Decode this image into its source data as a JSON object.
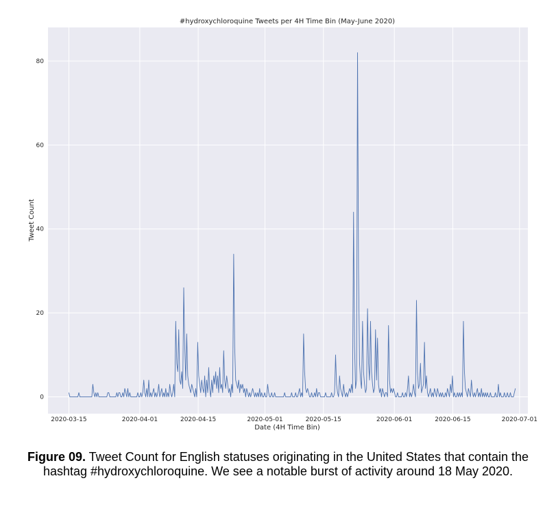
{
  "chart_data": {
    "type": "line",
    "title": "#hydroxychloroquine Tweets per 4H Time Bin (May-June 2020)",
    "xlabel": "Date (4H Time Bin)",
    "ylabel": "Tweet Count",
    "x_start": "2020-03-15",
    "x_end": "2020-06-30",
    "bin_hours": 4,
    "xlim": [
      "2020-03-10",
      "2020-07-03"
    ],
    "ylim": [
      -4,
      88
    ],
    "x_ticks": [
      "2020-03-15",
      "2020-04-01",
      "2020-04-15",
      "2020-05-01",
      "2020-05-15",
      "2020-06-01",
      "2020-06-15",
      "2020-07-01"
    ],
    "y_ticks": [
      0,
      20,
      40,
      60,
      80
    ],
    "grid": true,
    "series": [
      {
        "name": "Tweet Count",
        "color": "#4c72b0",
        "values": [
          1,
          0,
          0,
          0,
          0,
          0,
          0,
          0,
          0,
          0,
          1,
          0,
          0,
          0,
          0,
          0,
          0,
          0,
          0,
          0,
          0,
          0,
          0,
          0,
          3,
          1,
          0,
          1,
          0,
          1,
          0,
          0,
          0,
          0,
          0,
          0,
          0,
          0,
          0,
          1,
          1,
          0,
          0,
          0,
          0,
          0,
          0,
          0,
          1,
          0,
          1,
          1,
          0,
          0,
          1,
          0,
          2,
          1,
          0,
          2,
          0,
          1,
          0,
          0,
          0,
          0,
          0,
          0,
          0,
          1,
          0,
          0,
          1,
          0,
          1,
          4,
          1,
          0,
          2,
          0,
          4,
          0,
          1,
          0,
          1,
          2,
          0,
          1,
          0,
          1,
          3,
          0,
          1,
          2,
          0,
          1,
          0,
          2,
          0,
          1,
          0,
          3,
          1,
          0,
          1,
          3,
          0,
          18,
          8,
          6,
          16,
          4,
          3,
          6,
          2,
          26,
          12,
          4,
          15,
          5,
          3,
          2,
          1,
          3,
          2,
          1,
          0,
          2,
          0,
          13,
          5,
          3,
          1,
          4,
          2,
          1,
          5,
          0,
          4,
          1,
          7,
          2,
          0,
          4,
          1,
          5,
          3,
          6,
          2,
          5,
          1,
          7,
          2,
          3,
          1,
          11,
          4,
          2,
          5,
          3,
          1,
          2,
          0,
          3,
          1,
          34,
          12,
          4,
          3,
          2,
          4,
          1,
          3,
          2,
          3,
          1,
          2,
          0,
          2,
          1,
          0,
          1,
          0,
          1,
          2,
          1,
          0,
          1,
          0,
          1,
          0,
          2,
          0,
          1,
          0,
          0,
          1,
          0,
          0,
          3,
          1,
          0,
          0,
          1,
          0,
          0,
          1,
          0,
          0,
          0,
          0,
          0,
          0,
          0,
          0,
          0,
          1,
          0,
          0,
          0,
          0,
          0,
          0,
          1,
          0,
          0,
          0,
          1,
          0,
          0,
          1,
          2,
          0,
          1,
          0,
          15,
          6,
          2,
          1,
          2,
          1,
          0,
          0,
          1,
          0,
          0,
          1,
          0,
          2,
          0,
          1,
          1,
          0,
          0,
          0,
          0,
          0,
          1,
          0,
          0,
          0,
          0,
          0,
          1,
          0,
          0,
          1,
          10,
          3,
          1,
          0,
          5,
          2,
          1,
          0,
          3,
          1,
          0,
          1,
          0,
          1,
          2,
          1,
          3,
          1,
          44,
          12,
          2,
          4,
          82,
          30,
          8,
          4,
          2,
          18,
          6,
          3,
          1,
          2,
          21,
          8,
          4,
          18,
          6,
          3,
          1,
          2,
          16,
          4,
          14,
          3,
          1,
          2,
          0,
          2,
          1,
          0,
          1,
          1,
          0,
          17,
          4,
          1,
          2,
          1,
          2,
          1,
          0,
          0,
          1,
          0,
          0,
          0,
          0,
          1,
          0,
          0,
          1,
          0,
          2,
          5,
          0,
          1,
          0,
          1,
          3,
          1,
          0,
          23,
          6,
          2,
          3,
          8,
          1,
          2,
          3,
          13,
          2,
          5,
          1,
          0,
          1,
          2,
          0,
          1,
          0,
          2,
          1,
          0,
          2,
          1,
          0,
          1,
          0,
          1,
          0,
          0,
          1,
          0,
          2,
          1,
          0,
          3,
          1,
          5,
          0,
          1,
          0,
          0,
          1,
          0,
          1,
          0,
          1,
          0,
          18,
          6,
          2,
          1,
          0,
          2,
          1,
          0,
          4,
          1,
          0,
          1,
          0,
          1,
          2,
          0,
          1,
          0,
          2,
          0,
          1,
          0,
          1,
          0,
          1,
          0,
          0,
          1,
          0,
          0,
          0,
          0,
          1,
          0,
          0,
          3,
          0,
          1,
          0,
          0,
          0,
          1,
          0,
          0,
          1,
          0,
          0,
          1,
          0,
          0,
          0,
          1,
          2
        ]
      }
    ]
  },
  "caption": {
    "label": "Figure 09.",
    "text": " Tweet Count for English statuses originating in the United States that contain the hashtag #hydroxychloroquine. We see a notable burst of activity around 18 May 2020."
  }
}
